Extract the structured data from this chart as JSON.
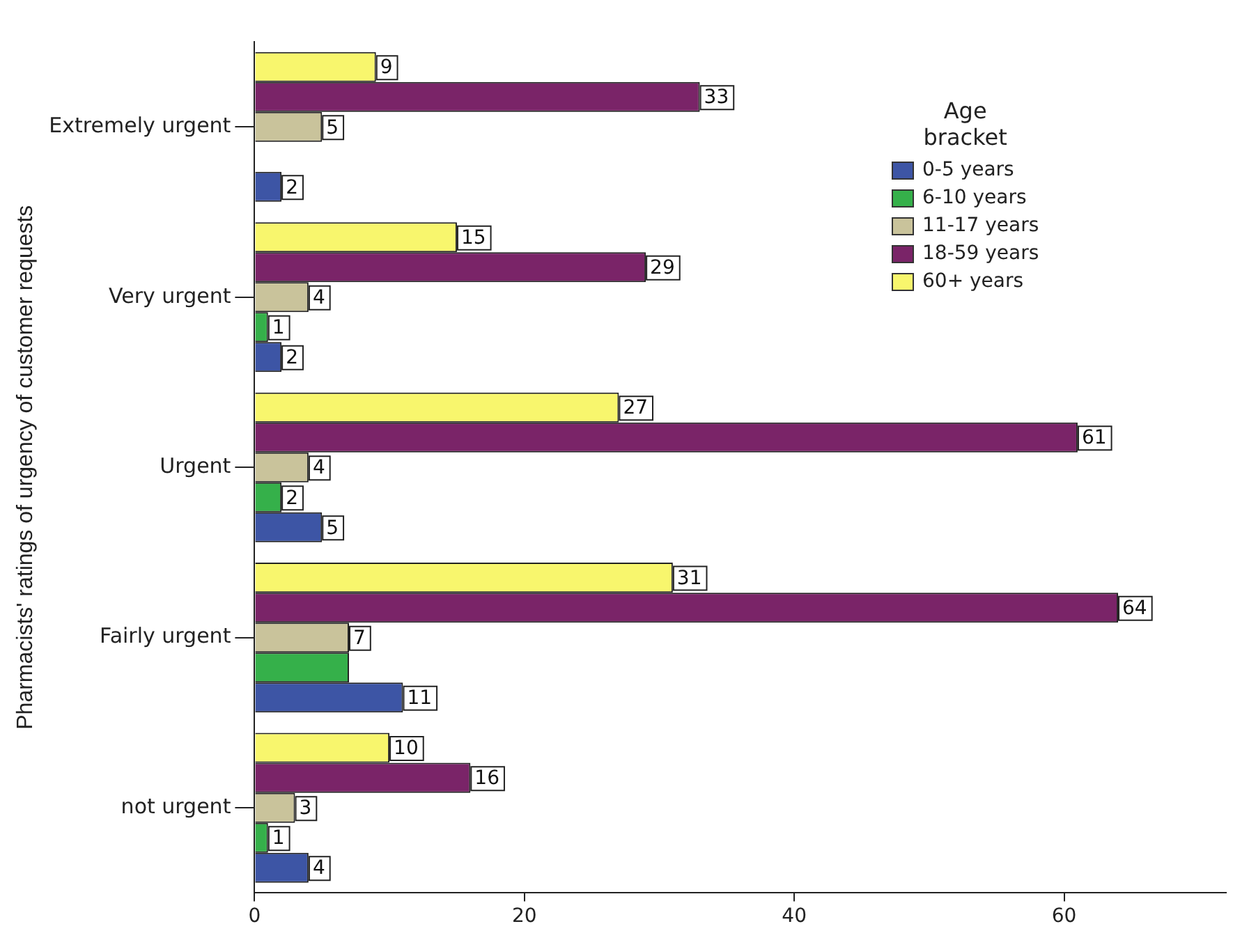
{
  "chart_data": {
    "type": "bar",
    "orientation": "horizontal",
    "ylabel": "Pharmacists' ratings of urgency of customer requests",
    "legend_title": "Age bracket",
    "categories": [
      "Extremely urgent",
      "Very urgent",
      "Urgent",
      "Fairly urgent",
      "not urgent"
    ],
    "series": [
      {
        "name": "0-5 years",
        "color": "#3d55a5",
        "values": [
          2,
          2,
          5,
          11,
          4
        ],
        "value_labels": [
          "2",
          "2",
          "5",
          "11",
          "4"
        ]
      },
      {
        "name": "6-10 years",
        "color": "#35b04a",
        "values": [
          null,
          1,
          2,
          7,
          1
        ],
        "value_labels": [
          null,
          "1",
          "2",
          null,
          "1"
        ]
      },
      {
        "name": "11-17 years",
        "color": "#c9c39b",
        "values": [
          5,
          4,
          4,
          7,
          3
        ],
        "value_labels": [
          "5",
          "4",
          "4",
          "7",
          "3"
        ]
      },
      {
        "name": "18-59 years",
        "color": "#7a2468",
        "values": [
          33,
          29,
          61,
          64,
          16
        ],
        "value_labels": [
          "33",
          "29",
          "61",
          "64",
          "16"
        ]
      },
      {
        "name": "60+ years",
        "color": "#f8f66d",
        "values": [
          9,
          15,
          27,
          31,
          10
        ],
        "value_labels": [
          "9",
          "15",
          "27",
          "31",
          "10"
        ]
      }
    ],
    "xlim": [
      0,
      72
    ],
    "xticks": [
      0,
      20,
      40,
      60
    ],
    "grid": false,
    "legend": "top right"
  }
}
